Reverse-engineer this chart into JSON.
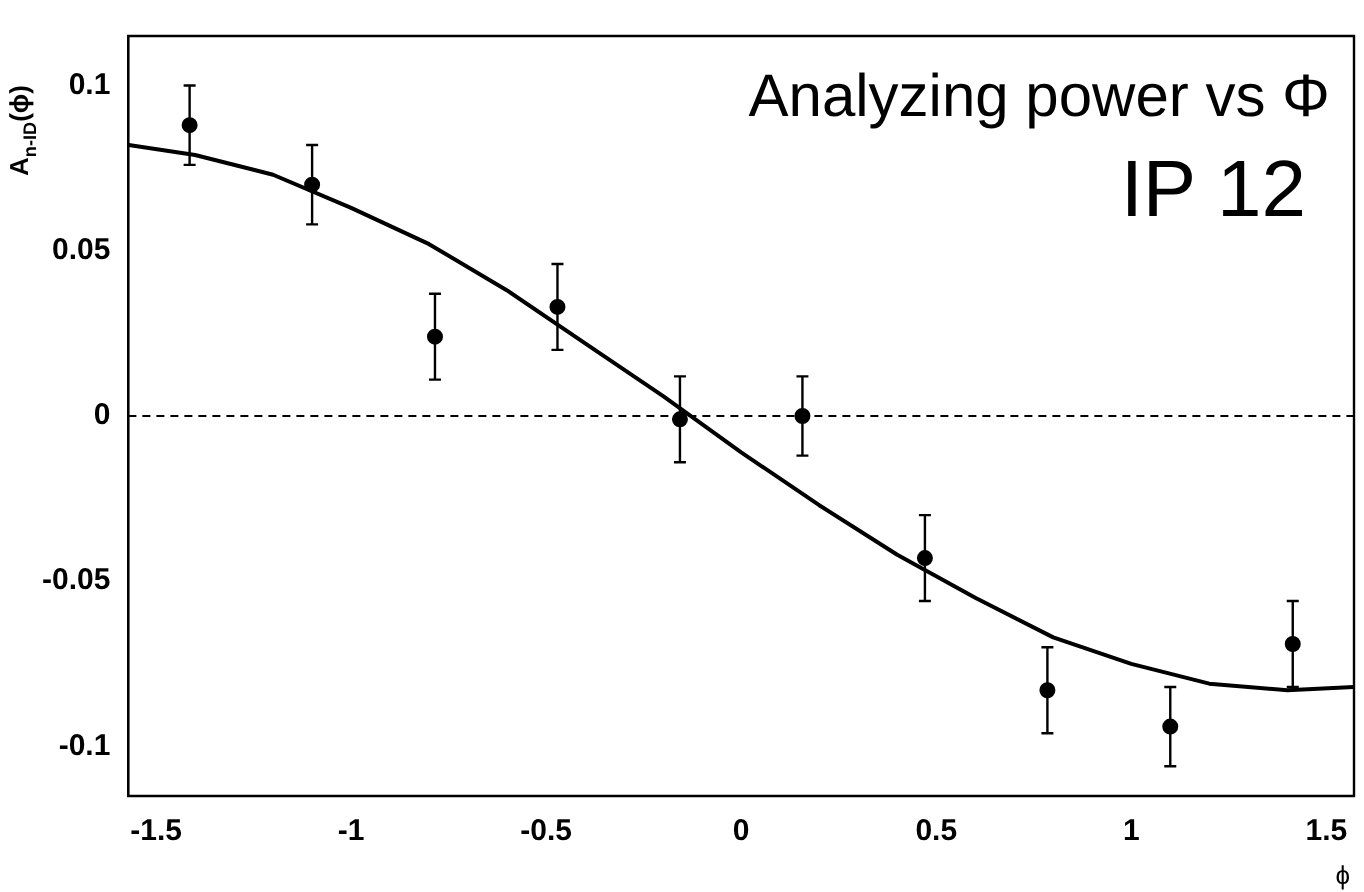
{
  "chart_data": {
    "type": "scatter",
    "ylabel": "A$_{n-ID}$(ϕ)",
    "xlabel": "ϕ",
    "annotations": [
      "Analyzing power vs Φ",
      "IP 12"
    ],
    "xlim": [
      -1.571,
      1.571
    ],
    "xticks": [
      {
        "value": -1.5,
        "label": "-1.5"
      },
      {
        "value": -1,
        "label": "-1"
      },
      {
        "value": -0.5,
        "label": "-0.5"
      },
      0,
      {
        "value": 0.5,
        "label": "0.5"
      },
      1,
      {
        "value": 1.5,
        "label": "1.5"
      }
    ],
    "ylim": [
      -0.115,
      0.115
    ],
    "yticks": [
      {
        "value": -0.1,
        "label": "-0.1"
      },
      {
        "value": -0.05,
        "label": "-0.05"
      },
      0,
      {
        "value": 0.05,
        "label": "0.05"
      },
      {
        "value": 0.1,
        "label": "0.1"
      }
    ],
    "grid": false,
    "legend": false,
    "ref_lines": [
      {
        "axis": "y",
        "value": 0,
        "line_style": "dashed",
        "color": "#000000"
      }
    ],
    "series": [
      {
        "type": "scatter",
        "marker": "circle",
        "color": "#000000",
        "x": [
          -1.414,
          -1.1,
          -0.785,
          -0.471,
          -0.157,
          0.157,
          0.471,
          0.785,
          1.1,
          1.414
        ],
        "values": [
          0.088,
          0.07,
          0.024,
          0.033,
          -0.001,
          0.0,
          -0.043,
          -0.083,
          -0.094,
          -0.069
        ],
        "errors": [
          0.012,
          0.012,
          0.013,
          0.013,
          0.013,
          0.012,
          0.013,
          0.013,
          0.012,
          0.013
        ]
      },
      {
        "type": "line",
        "marker": "none",
        "line_style": "solid",
        "color": "#000000",
        "x": [
          -1.57,
          -1.4,
          -1.2,
          -1.0,
          -0.8,
          -0.6,
          -0.4,
          -0.2,
          0,
          0.2,
          0.4,
          0.6,
          0.8,
          1.0,
          1.2,
          1.4,
          1.57
        ],
        "values": [
          0.082,
          0.079,
          0.073,
          0.063,
          0.052,
          0.038,
          0.022,
          0.006,
          -0.011,
          -0.027,
          -0.042,
          -0.055,
          -0.067,
          -0.075,
          -0.081,
          -0.083,
          -0.082
        ]
      }
    ]
  }
}
